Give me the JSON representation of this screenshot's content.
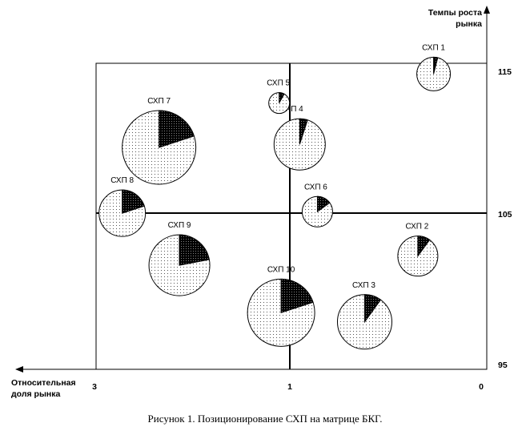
{
  "y_axis_label": [
    "Темпы роста",
    "рынка"
  ],
  "x_axis_label": [
    "Относительная",
    "доля рынка"
  ],
  "caption": "Рисунок 1. Позиционирование СХП на матрице БКГ.",
  "chart_data": {
    "type": "bubble-pie",
    "x_ticks": [
      "3",
      "1",
      "0"
    ],
    "y_ticks": [
      "115",
      "105",
      "95"
    ],
    "xlim": [
      3,
      0
    ],
    "ylim": [
      95,
      115
    ],
    "dividers": {
      "x": 1,
      "y": 105
    },
    "units": [
      {
        "label": "СХП 1",
        "x": 0.27,
        "y": 114.3,
        "r": 21,
        "share": 0.04
      },
      {
        "label": "СХП 2",
        "x": 0.35,
        "y": 102.4,
        "r": 25,
        "share": 0.1
      },
      {
        "label": "СХП 3",
        "x": 0.62,
        "y": 98.1,
        "r": 34,
        "share": 0.1
      },
      {
        "label": "СХП 4",
        "x": 0.95,
        "y": 109.7,
        "r": 32,
        "share": 0.05
      },
      {
        "label": "СХП 5",
        "x": 1.11,
        "y": 112.4,
        "r": 13,
        "share": 0.08
      },
      {
        "label": "СХП 6",
        "x": 0.86,
        "y": 105.3,
        "r": 19,
        "share": 0.15
      },
      {
        "label": "СХП 7",
        "x": 2.35,
        "y": 109.5,
        "r": 46,
        "share": 0.2
      },
      {
        "label": "СХП 8",
        "x": 2.73,
        "y": 105.2,
        "r": 29,
        "share": 0.2
      },
      {
        "label": "СХП 9",
        "x": 2.14,
        "y": 101.8,
        "r": 38,
        "share": 0.22
      },
      {
        "label": "СХП 10",
        "x": 1.09,
        "y": 98.7,
        "r": 42,
        "share": 0.2
      }
    ]
  }
}
